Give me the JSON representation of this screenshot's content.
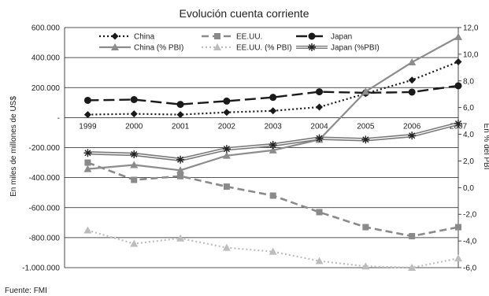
{
  "chart_data": {
    "type": "line",
    "title": "Evolución cuenta corriente",
    "ylabel": "En miles de millones de US$",
    "y2label": "En % del PBI",
    "source": "Fuente: FMI",
    "x": [
      "1999",
      "2000",
      "2001",
      "2002",
      "2003",
      "2004",
      "2005",
      "2006",
      "2007"
    ],
    "ylim": [
      -1000000,
      600000
    ],
    "y_ticks": [
      600000,
      400000,
      200000,
      0,
      -200000,
      -400000,
      -600000,
      -800000,
      -1000000
    ],
    "y_tick_labels": [
      "600.000",
      "400.000",
      "200.000",
      "-",
      "-200.000",
      "-400.000",
      "-600.000",
      "-800.000",
      "-1.000.000"
    ],
    "y2lim": [
      -6,
      12
    ],
    "y2_ticks": [
      12,
      10,
      8,
      6,
      4,
      2,
      0,
      -2,
      -4,
      -6
    ],
    "y2_tick_labels": [
      "12,0",
      "10,0",
      "8,0",
      "6,0",
      "4,0",
      "2,0",
      "0,0",
      "-2,0",
      "-4,0",
      "-6,0"
    ],
    "grid": "horizontal",
    "legend_position": "top",
    "series": [
      {
        "name": "China",
        "axis": "left",
        "values": [
          20000,
          25000,
          20000,
          35000,
          45000,
          70000,
          160000,
          250000,
          372000
        ],
        "color": "#1a1a1a",
        "dash": "dotted",
        "marker": "diamond"
      },
      {
        "name": "EE.UU.",
        "axis": "left",
        "values": [
          -300000,
          -415000,
          -390000,
          -460000,
          -520000,
          -630000,
          -730000,
          -790000,
          -730000
        ],
        "color": "#8a8a8a",
        "dash": "dashed",
        "marker": "square"
      },
      {
        "name": "Japan",
        "axis": "left",
        "values": [
          115000,
          120000,
          88000,
          110000,
          135000,
          172000,
          165000,
          170000,
          212000
        ],
        "color": "#1a1a1a",
        "dash": "longdash",
        "marker": "circle"
      },
      {
        "name": "China (% PBI)",
        "axis": "right",
        "values": [
          1.4,
          1.7,
          1.3,
          2.4,
          2.8,
          3.6,
          7.2,
          9.4,
          11.3
        ],
        "color": "#8c8c8c",
        "dash": "solid",
        "marker": "triangle"
      },
      {
        "name": "EE.UU. (% PBI)",
        "axis": "right",
        "values": [
          -3.2,
          -4.2,
          -3.8,
          -4.5,
          -4.8,
          -5.5,
          -5.9,
          -6.0,
          -5.3
        ],
        "color": "#bdbdbd",
        "dash": "dotted",
        "marker": "triangle"
      },
      {
        "name": "Japan (%PBI)",
        "axis": "right",
        "values": [
          2.6,
          2.5,
          2.1,
          2.9,
          3.2,
          3.7,
          3.6,
          3.9,
          4.8
        ],
        "color": "#7a7a7a",
        "dash": "double",
        "marker": "star"
      }
    ]
  }
}
